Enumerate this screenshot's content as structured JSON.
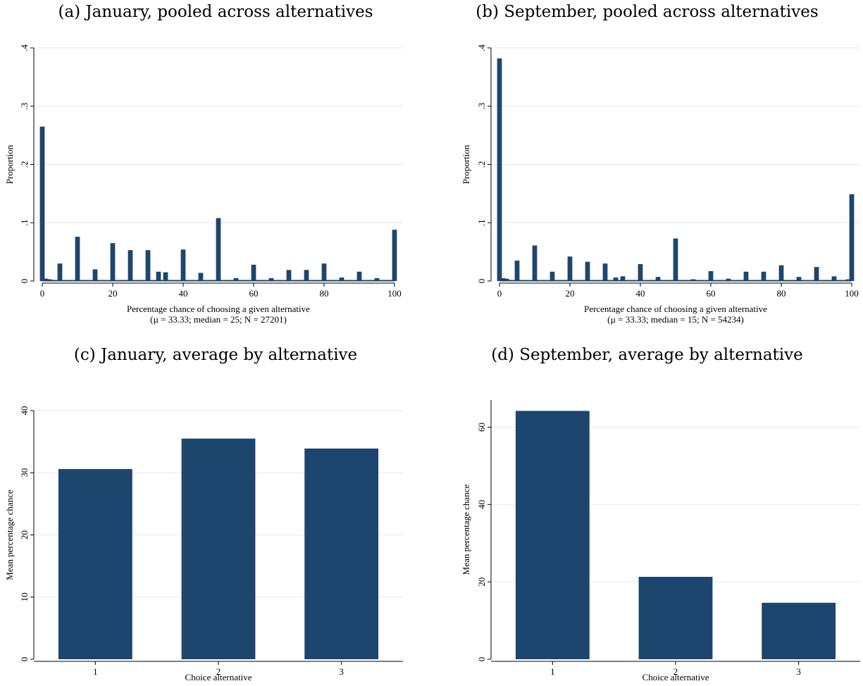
{
  "chart_data": [
    {
      "type": "bar",
      "title": "(a) January, pooled across alternatives",
      "xlabel": "Percentage chance of choosing a given alternative",
      "note": "(µ = 33.33; median = 25; N = 27201)",
      "ylabel": "Proportion",
      "xlim": [
        0,
        100
      ],
      "ylim": [
        0,
        0.4
      ],
      "xticks": [
        "0",
        "20",
        "40",
        "60",
        "80",
        "100"
      ],
      "yticks": [
        "0",
        ".1",
        ".2",
        ".3",
        ".4"
      ],
      "grid": true,
      "color": "#1c466d",
      "x": [
        0,
        1,
        2,
        3,
        5,
        10,
        15,
        20,
        25,
        30,
        33,
        35,
        40,
        45,
        50,
        55,
        60,
        65,
        70,
        75,
        80,
        85,
        90,
        95,
        100
      ],
      "values": [
        0.265,
        0.004,
        0.003,
        0.002,
        0.03,
        0.076,
        0.02,
        0.065,
        0.053,
        0.053,
        0.016,
        0.015,
        0.054,
        0.014,
        0.108,
        0.005,
        0.028,
        0.005,
        0.019,
        0.019,
        0.03,
        0.006,
        0.016,
        0.005,
        0.088
      ]
    },
    {
      "type": "bar",
      "title": "(b) September, pooled across alternatives",
      "xlabel": "Percentage chance of choosing a given alternative",
      "note": "(µ = 33.33; median = 15; N = 54234)",
      "ylabel": "Proportion",
      "xlim": [
        0,
        100
      ],
      "ylim": [
        0,
        0.4
      ],
      "xticks": [
        "0",
        "20",
        "40",
        "60",
        "80",
        "100"
      ],
      "yticks": [
        "0",
        ".1",
        ".2",
        ".3",
        ".4"
      ],
      "grid": true,
      "color": "#1c466d",
      "x": [
        0,
        1,
        2,
        3,
        5,
        10,
        15,
        20,
        25,
        30,
        33,
        35,
        40,
        45,
        50,
        55,
        60,
        65,
        70,
        75,
        80,
        85,
        90,
        95,
        99,
        100
      ],
      "values": [
        0.382,
        0.005,
        0.004,
        0.002,
        0.035,
        0.061,
        0.016,
        0.042,
        0.033,
        0.03,
        0.006,
        0.008,
        0.029,
        0.007,
        0.073,
        0.003,
        0.017,
        0.004,
        0.016,
        0.016,
        0.027,
        0.007,
        0.024,
        0.008,
        0.003,
        0.149
      ]
    },
    {
      "type": "bar",
      "title": "(c) January, average by alternative",
      "xlabel": "Choice alternative",
      "ylabel": "Mean percentage chance",
      "categories": [
        "1",
        "2",
        "3"
      ],
      "values": [
        30.6,
        35.5,
        33.9
      ],
      "ylim": [
        0,
        40
      ],
      "yticks": [
        "0",
        "10",
        "20",
        "30",
        "40"
      ],
      "grid": true,
      "color": "#1c466d"
    },
    {
      "type": "bar",
      "title": "(d) September, average by alternative",
      "xlabel": "Choice alternative",
      "ylabel": "Mean percentage chance",
      "categories": [
        "1",
        "2",
        "3"
      ],
      "values": [
        64.2,
        21.3,
        14.6
      ],
      "ylim": [
        0,
        60
      ],
      "yticks": [
        "0",
        "20",
        "40",
        "60"
      ],
      "grid": true,
      "color": "#1c466d"
    }
  ]
}
